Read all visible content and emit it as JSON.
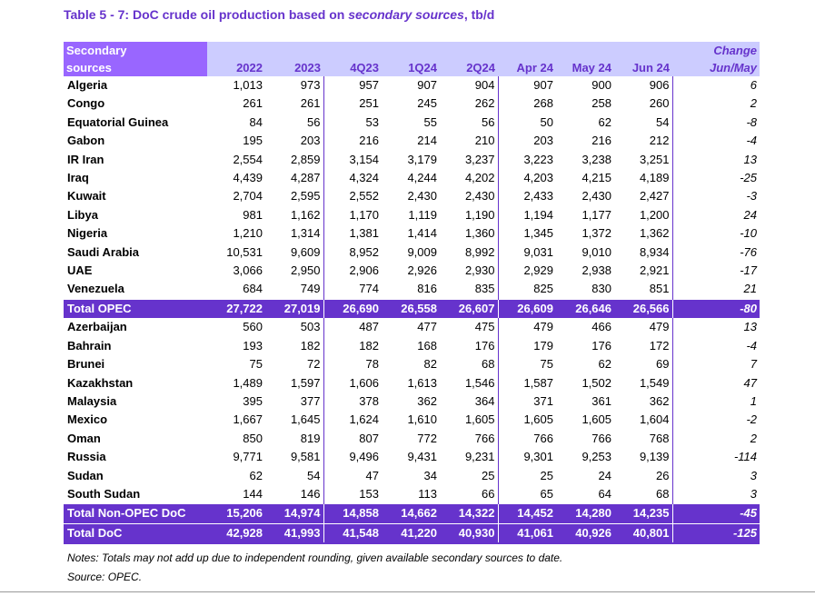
{
  "title": {
    "prefix": "Table 5 - 7: DoC crude oil production based on ",
    "italic": "secondary sources",
    "suffix": ", tb/d"
  },
  "header": {
    "name_line1": "Secondary",
    "name_line2": "sources",
    "columns": [
      "2022",
      "2023",
      "4Q23",
      "1Q24",
      "2Q24",
      "Apr 24",
      "May 24",
      "Jun 24"
    ],
    "change_line1": "Change",
    "change_line2": "Jun/May"
  },
  "opec_rows": [
    {
      "name": "Algeria",
      "values": [
        "1,013",
        "973",
        "957",
        "907",
        "904",
        "907",
        "900",
        "906"
      ],
      "change": "6"
    },
    {
      "name": "Congo",
      "values": [
        "261",
        "261",
        "251",
        "245",
        "262",
        "268",
        "258",
        "260"
      ],
      "change": "2"
    },
    {
      "name": "Equatorial Guinea",
      "values": [
        "84",
        "56",
        "53",
        "55",
        "56",
        "50",
        "62",
        "54"
      ],
      "change": "-8"
    },
    {
      "name": "Gabon",
      "values": [
        "195",
        "203",
        "216",
        "214",
        "210",
        "203",
        "216",
        "212"
      ],
      "change": "-4"
    },
    {
      "name": "IR Iran",
      "values": [
        "2,554",
        "2,859",
        "3,154",
        "3,179",
        "3,237",
        "3,223",
        "3,238",
        "3,251"
      ],
      "change": "13"
    },
    {
      "name": "Iraq",
      "values": [
        "4,439",
        "4,287",
        "4,324",
        "4,244",
        "4,202",
        "4,203",
        "4,215",
        "4,189"
      ],
      "change": "-25"
    },
    {
      "name": "Kuwait",
      "values": [
        "2,704",
        "2,595",
        "2,552",
        "2,430",
        "2,430",
        "2,433",
        "2,430",
        "2,427"
      ],
      "change": "-3"
    },
    {
      "name": "Libya",
      "values": [
        "981",
        "1,162",
        "1,170",
        "1,119",
        "1,190",
        "1,194",
        "1,177",
        "1,200"
      ],
      "change": "24"
    },
    {
      "name": "Nigeria",
      "values": [
        "1,210",
        "1,314",
        "1,381",
        "1,414",
        "1,360",
        "1,345",
        "1,372",
        "1,362"
      ],
      "change": "-10"
    },
    {
      "name": "Saudi Arabia",
      "values": [
        "10,531",
        "9,609",
        "8,952",
        "9,009",
        "8,992",
        "9,031",
        "9,010",
        "8,934"
      ],
      "change": "-76"
    },
    {
      "name": "UAE",
      "values": [
        "3,066",
        "2,950",
        "2,906",
        "2,926",
        "2,930",
        "2,929",
        "2,938",
        "2,921"
      ],
      "change": "-17"
    },
    {
      "name": "Venezuela",
      "values": [
        "684",
        "749",
        "774",
        "816",
        "835",
        "825",
        "830",
        "851"
      ],
      "change": "21"
    }
  ],
  "total_opec": {
    "name": "Total  OPEC",
    "values": [
      "27,722",
      "27,019",
      "26,690",
      "26,558",
      "26,607",
      "26,609",
      "26,646",
      "26,566"
    ],
    "change": "-80"
  },
  "non_opec_rows": [
    {
      "name": "Azerbaijan",
      "values": [
        "560",
        "503",
        "487",
        "477",
        "475",
        "479",
        "466",
        "479"
      ],
      "change": "13"
    },
    {
      "name": "Bahrain",
      "values": [
        "193",
        "182",
        "182",
        "168",
        "176",
        "179",
        "176",
        "172"
      ],
      "change": "-4"
    },
    {
      "name": "Brunei",
      "values": [
        "75",
        "72",
        "78",
        "82",
        "68",
        "75",
        "62",
        "69"
      ],
      "change": "7"
    },
    {
      "name": "Kazakhstan",
      "values": [
        "1,489",
        "1,597",
        "1,606",
        "1,613",
        "1,546",
        "1,587",
        "1,502",
        "1,549"
      ],
      "change": "47"
    },
    {
      "name": "Malaysia",
      "values": [
        "395",
        "377",
        "378",
        "362",
        "364",
        "371",
        "361",
        "362"
      ],
      "change": "1"
    },
    {
      "name": "Mexico",
      "values": [
        "1,667",
        "1,645",
        "1,624",
        "1,610",
        "1,605",
        "1,605",
        "1,605",
        "1,604"
      ],
      "change": "-2"
    },
    {
      "name": "Oman",
      "values": [
        "850",
        "819",
        "807",
        "772",
        "766",
        "766",
        "766",
        "768"
      ],
      "change": "2"
    },
    {
      "name": "Russia",
      "values": [
        "9,771",
        "9,581",
        "9,496",
        "9,431",
        "9,231",
        "9,301",
        "9,253",
        "9,139"
      ],
      "change": "-114"
    },
    {
      "name": "Sudan",
      "values": [
        "62",
        "54",
        "47",
        "34",
        "25",
        "25",
        "24",
        "26"
      ],
      "change": "3"
    },
    {
      "name": "South Sudan",
      "values": [
        "144",
        "146",
        "153",
        "113",
        "66",
        "65",
        "64",
        "68"
      ],
      "change": "3"
    }
  ],
  "total_non_opec": {
    "name": "Total Non-OPEC DoC",
    "values": [
      "15,206",
      "14,974",
      "14,858",
      "14,662",
      "14,322",
      "14,452",
      "14,280",
      "14,235"
    ],
    "change": "-45"
  },
  "total_doc": {
    "name": "Total DoC",
    "values": [
      "42,928",
      "41,993",
      "41,548",
      "41,220",
      "40,930",
      "41,061",
      "40,926",
      "40,801"
    ],
    "change": "-125"
  },
  "notes": "Notes: Totals may not add up due to independent rounding, given available secondary sources to date.",
  "source": "Source: OPEC.",
  "colors": {
    "accent": "#6633cc",
    "header_bg": "#ccccff",
    "header_name_bg": "#9966ff"
  }
}
